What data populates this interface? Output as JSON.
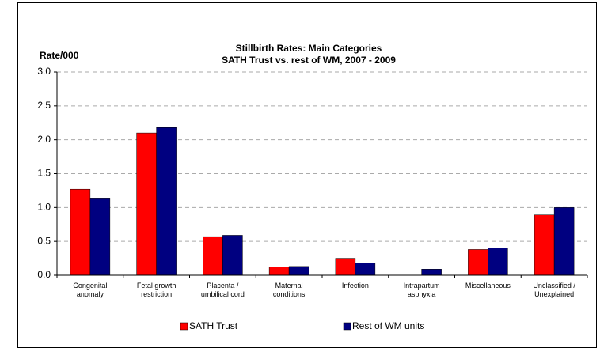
{
  "chart_data": {
    "type": "bar",
    "title": "Stillbirth Rates: Main Categories",
    "subtitle": "SATH Trust vs. rest of WM, 2007 - 2009",
    "y_label": "Rate/000",
    "categories": [
      "Congenital anomaly",
      "Fetal growth restriction",
      "Placenta / umbilical cord",
      "Maternal conditions",
      "Infection",
      "Intrapartum asphyxia",
      "Miscellaneous",
      "Unclassified / Unexplained"
    ],
    "series": [
      {
        "name": "SATH Trust",
        "color": "#ff0000",
        "values": [
          1.27,
          2.1,
          0.57,
          0.12,
          0.25,
          0,
          0.38,
          0.89
        ]
      },
      {
        "name": "Rest of WM units",
        "color": "#000080",
        "values": [
          1.14,
          2.18,
          0.59,
          0.13,
          0.18,
          0.09,
          0.4,
          1.0
        ]
      }
    ],
    "ylim": [
      0,
      3
    ],
    "yticks": [
      {
        "value": 0,
        "label": "0.0"
      },
      {
        "value": 0.5,
        "label": "0.5"
      },
      {
        "value": 1,
        "label": "1.0"
      },
      {
        "value": 1.5,
        "label": "1.5"
      },
      {
        "value": 2,
        "label": "2.0"
      },
      {
        "value": 2.5,
        "label": "2.5"
      },
      {
        "value": 3,
        "label": "3.0"
      }
    ],
    "grid": true,
    "legend": "bottom"
  }
}
